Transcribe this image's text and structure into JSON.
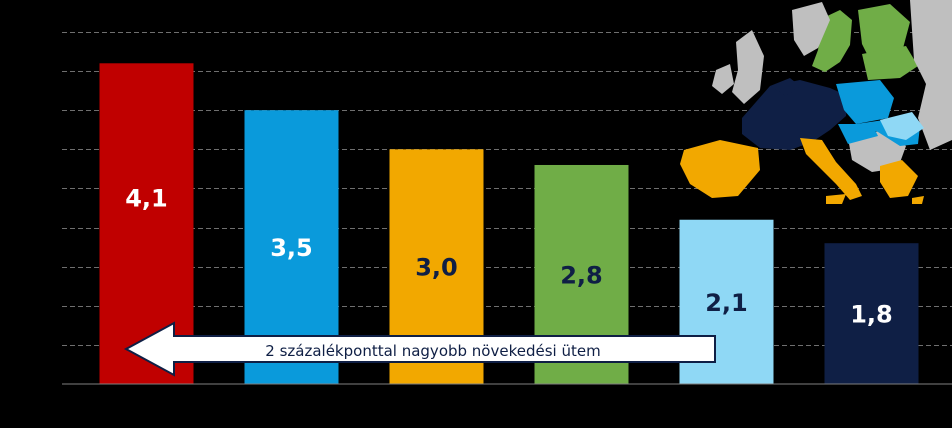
{
  "chart_data": {
    "type": "bar",
    "title": "",
    "xlabel": "",
    "ylabel": "",
    "ylim": [
      0,
      4.5
    ],
    "grid": true,
    "categories": [
      "",
      "",
      "",
      "",
      "",
      ""
    ],
    "values": [
      4.1,
      3.5,
      3.0,
      2.8,
      2.1,
      1.8
    ],
    "value_labels": [
      "4,1",
      "3,5",
      "3,0",
      "2,8",
      "2,1",
      "1,8"
    ],
    "bar_colors": [
      "#C00000",
      "#0A9ADB",
      "#F2A800",
      "#70AD47",
      "#8FD8F5",
      "#0F1F45"
    ],
    "label_colors": [
      "#FFFFFF",
      "#FFFFFF",
      "#0F1F45",
      "#0F1F45",
      "#0F1F45",
      "#FFFFFF"
    ],
    "annotations": [
      {
        "text": "2 százalékponttal nagyobb növekedési ütem",
        "type": "left-arrow"
      }
    ]
  },
  "map": {
    "colors": {
      "navy": "#0F1F45",
      "blue": "#0A9ADB",
      "light_blue": "#8FD8F5",
      "green": "#70AD47",
      "orange": "#F2A800",
      "grey": "#BFBFBF"
    }
  }
}
